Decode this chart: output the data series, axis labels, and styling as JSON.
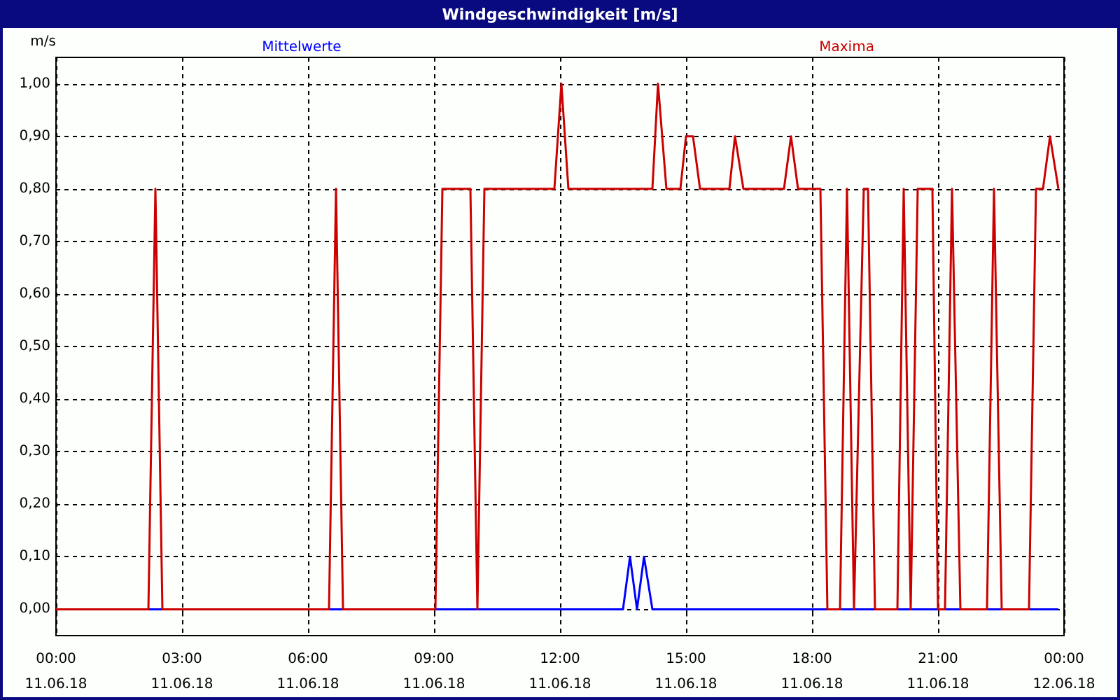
{
  "chart_data": {
    "type": "line",
    "title": "Windgeschwindigkeit [m/s]",
    "ylabel": "m/s",
    "xlim": [
      "--06-11T00:00",
      "--06-12T00:00"
    ],
    "xticks": [
      {
        "value": "--06-11T00:00",
        "label": "00:00\n11.06.18"
      },
      {
        "value": "--06-11T03:00",
        "label": "03:00\n11.06.18"
      },
      {
        "value": "--06-11T06:00",
        "label": "06:00\n11.06.18"
      },
      {
        "value": "--06-11T09:00",
        "label": "09:00\n11.06.18"
      },
      {
        "value": "--06-11T12:00",
        "label": "12:00\n11.06.18"
      },
      {
        "value": "--06-11T15:00",
        "label": "15:00\n11.06.18"
      },
      {
        "value": "--06-11T18:00",
        "label": "18:00\n11.06.18"
      },
      {
        "value": "--06-11T21:00",
        "label": "21:00\n11.06.18"
      },
      {
        "value": "--06-12T00:00",
        "label": "00:00\n12.06.18"
      }
    ],
    "ylim": [
      -0.05,
      1.05
    ],
    "yticks": [
      {
        "value": 0,
        "label": "0,00"
      },
      {
        "value": 0.1,
        "label": "0,10"
      },
      {
        "value": 0.2,
        "label": "0,20"
      },
      {
        "value": 0.3,
        "label": "0,30"
      },
      {
        "value": 0.4,
        "label": "0,40"
      },
      {
        "value": 0.5,
        "label": "0,50"
      },
      {
        "value": 0.6,
        "label": "0,60"
      },
      {
        "value": 0.7,
        "label": "0,70"
      },
      {
        "value": 0.8,
        "label": "0,80"
      },
      {
        "value": 0.9,
        "label": "0,90"
      },
      {
        "value": 1,
        "label": "1,00"
      }
    ],
    "grid": true,
    "legend": "top",
    "marker": "none",
    "line_style": "solid",
    "series": [
      {
        "name": "Mittelwerte",
        "color": "#0000ff",
        "x": [
          "--06-11T00:00",
          "--06-11T13:30",
          "--06-11T13:40",
          "--06-11T13:50",
          "--06-11T14:00",
          "--06-11T14:12",
          "--06-11T23:52"
        ],
        "values": [
          0,
          0,
          0.1,
          0,
          0.1,
          0,
          0
        ]
      },
      {
        "name": "Maxima",
        "color": "#cc0000",
        "x": [
          "--06-11T00:00",
          "--06-11T02:12",
          "--06-11T02:22",
          "--06-11T02:32",
          "--06-11T06:30",
          "--06-11T06:40",
          "--06-11T06:50",
          "--06-11T09:02",
          "--06-11T09:12",
          "--06-11T09:52",
          "--06-11T10:02",
          "--06-11T10:12",
          "--06-11T11:52",
          "--06-11T12:02",
          "--06-11T12:12",
          "--06-11T14:12",
          "--06-11T14:20",
          "--06-11T14:32",
          "--06-11T14:52",
          "--06-11T15:00",
          "--06-11T15:10",
          "--06-11T15:20",
          "--06-11T16:02",
          "--06-11T16:10",
          "--06-11T16:22",
          "--06-11T17:20",
          "--06-11T17:30",
          "--06-11T17:40",
          "--06-11T18:12",
          "--06-11T18:22",
          "--06-11T18:40",
          "--06-11T18:50",
          "--06-11T19:00",
          "--06-11T19:14",
          "--06-11T19:20",
          "--06-11T19:30",
          "--06-11T20:02",
          "--06-11T20:11",
          "--06-11T20:21",
          "--06-11T20:31",
          "--06-11T20:52",
          "--06-11T21:00",
          "--06-11T21:10",
          "--06-11T21:20",
          "--06-11T21:32",
          "--06-11T22:10",
          "--06-11T22:20",
          "--06-11T22:31",
          "--06-11T23:10",
          "--06-11T23:20",
          "--06-11T23:30",
          "--06-11T23:40",
          "--06-11T23:52"
        ],
        "values": [
          0,
          0,
          0.8,
          0,
          0,
          0.8,
          0,
          0,
          0.8,
          0.8,
          0,
          0.8,
          0.8,
          1.0,
          0.8,
          0.8,
          1.0,
          0.8,
          0.8,
          0.9,
          0.9,
          0.8,
          0.8,
          0.9,
          0.8,
          0.8,
          0.9,
          0.8,
          0.8,
          0,
          0,
          0.8,
          0,
          0.8,
          0.8,
          0,
          0,
          0.8,
          0,
          0.8,
          0.8,
          0,
          0,
          0.8,
          0,
          0,
          0.8,
          0,
          0,
          0.8,
          0.8,
          0.9,
          0.8
        ]
      }
    ]
  }
}
